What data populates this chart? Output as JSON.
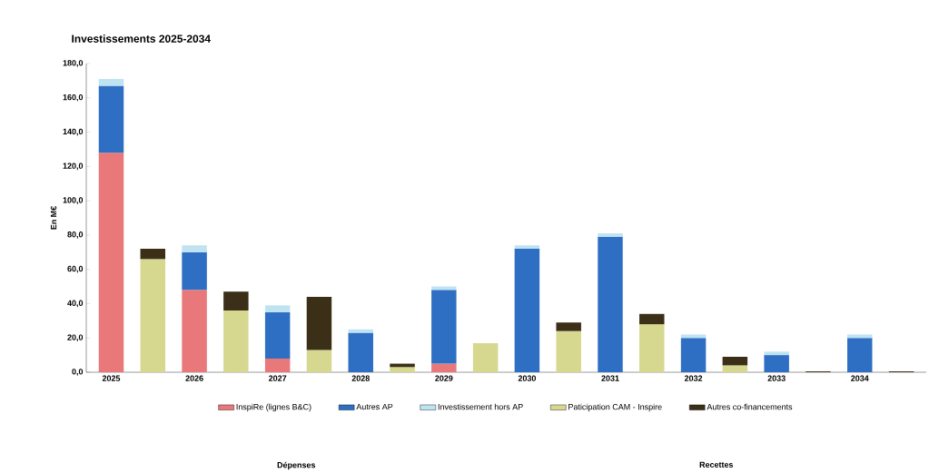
{
  "chart_data": {
    "type": "bar",
    "stacked": true,
    "title": "Investissements 2025-2034",
    "ylabel": "En M€",
    "categories": [
      "2025",
      null,
      "2026",
      null,
      "2027",
      null,
      "2028",
      null,
      "2029",
      null,
      "2030",
      null,
      "2031",
      null,
      "2032",
      null,
      "2033",
      null,
      "2034",
      null
    ],
    "series": [
      {
        "name": "InspiRe (lignes B&C)",
        "color": "#e8787a",
        "values": [
          128,
          null,
          48,
          null,
          8,
          null,
          null,
          null,
          5,
          null,
          null,
          null,
          null,
          null,
          null,
          null,
          null,
          null,
          null,
          null
        ]
      },
      {
        "name": "Autres AP",
        "color": "#2e6fc4",
        "values": [
          39,
          null,
          22,
          null,
          27,
          null,
          23,
          null,
          43,
          null,
          72,
          null,
          79,
          null,
          20,
          null,
          10,
          null,
          20,
          null
        ]
      },
      {
        "name": "Investissement hors AP",
        "color": "#bfe3f2",
        "values": [
          4,
          null,
          4,
          null,
          4,
          null,
          2,
          null,
          2,
          null,
          2,
          null,
          2,
          null,
          2,
          null,
          2,
          null,
          2,
          null
        ]
      },
      {
        "name": "Paticipation CAM - Inspire",
        "color": "#d6d88f",
        "values": [
          null,
          66,
          null,
          36,
          null,
          13,
          null,
          3,
          null,
          17,
          null,
          24,
          null,
          28,
          null,
          4,
          null,
          null,
          null,
          null
        ]
      },
      {
        "name": "Autres co-financements",
        "color": "#3b2f17",
        "values": [
          null,
          6,
          null,
          11,
          null,
          31,
          null,
          2,
          null,
          null,
          null,
          5,
          null,
          6,
          null,
          5,
          null,
          0.5,
          null,
          0.5
        ]
      }
    ],
    "ylim": [
      0,
      180
    ],
    "yticks": [
      {
        "value": 0,
        "label": "0,0"
      },
      {
        "value": 20,
        "label": "20,0"
      },
      {
        "value": 40,
        "label": "40,0"
      },
      {
        "value": 60,
        "label": "60,0"
      },
      {
        "value": 80,
        "label": "80,0"
      },
      {
        "value": 100,
        "label": "100,0"
      },
      {
        "value": 120,
        "label": "120,0"
      },
      {
        "value": 140,
        "label": "140,0"
      },
      {
        "value": 160,
        "label": "160,0"
      },
      {
        "value": 180,
        "label": "180,0"
      }
    ],
    "legend": "bottom",
    "annotations": [
      "Dépenses",
      "Recettes"
    ]
  }
}
